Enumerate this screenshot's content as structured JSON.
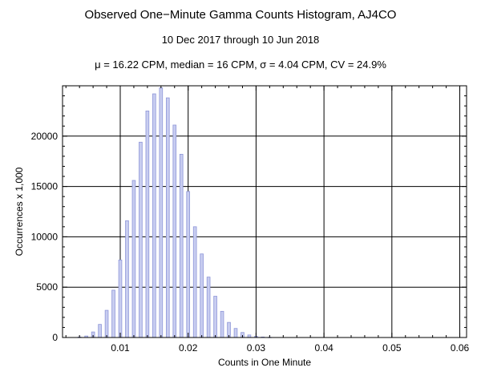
{
  "chart_data": {
    "type": "bar",
    "title": "Observed One−Minute Gamma Counts Histogram, AJ4CO",
    "subtitle": "10 Dec 2017 through 10 Jun 2018",
    "stats_line": "μ = 16.22 CPM,   median = 16 CPM,   σ = 4.04 CPM,   CV = 24.9%",
    "xlabel": "Counts in One Minute",
    "ylabel": "Occurrences x 1,000",
    "xlim": [
      0.0015,
      0.061
    ],
    "ylim": [
      0,
      25000
    ],
    "xticks": [
      0.01,
      0.02,
      0.03,
      0.04,
      0.05,
      0.06
    ],
    "xtick_labels": [
      "0.01",
      "0.02",
      "0.03",
      "0.04",
      "0.05",
      "0.06"
    ],
    "yticks": [
      0,
      5000,
      10000,
      15000,
      20000
    ],
    "ytick_labels": [
      "0",
      "5000",
      "10000",
      "15000",
      "20000"
    ],
    "grid": true,
    "bar_width": 0.00045,
    "bar_color": "#c8cdf0",
    "bar_edge_color": "#8e96d8",
    "x": [
      0.004,
      0.005,
      0.006,
      0.007,
      0.008,
      0.009,
      0.01,
      0.011,
      0.012,
      0.013,
      0.014,
      0.015,
      0.016,
      0.017,
      0.018,
      0.019,
      0.02,
      0.021,
      0.022,
      0.023,
      0.024,
      0.025,
      0.026,
      0.027,
      0.028,
      0.029,
      0.03,
      0.031,
      0.032
    ],
    "values": [
      50,
      150,
      550,
      1300,
      2700,
      4700,
      7700,
      11600,
      15600,
      19400,
      22500,
      24200,
      24800,
      23800,
      21100,
      18200,
      14500,
      11000,
      8300,
      6000,
      4100,
      2600,
      1500,
      900,
      500,
      250,
      120,
      50,
      20
    ]
  }
}
